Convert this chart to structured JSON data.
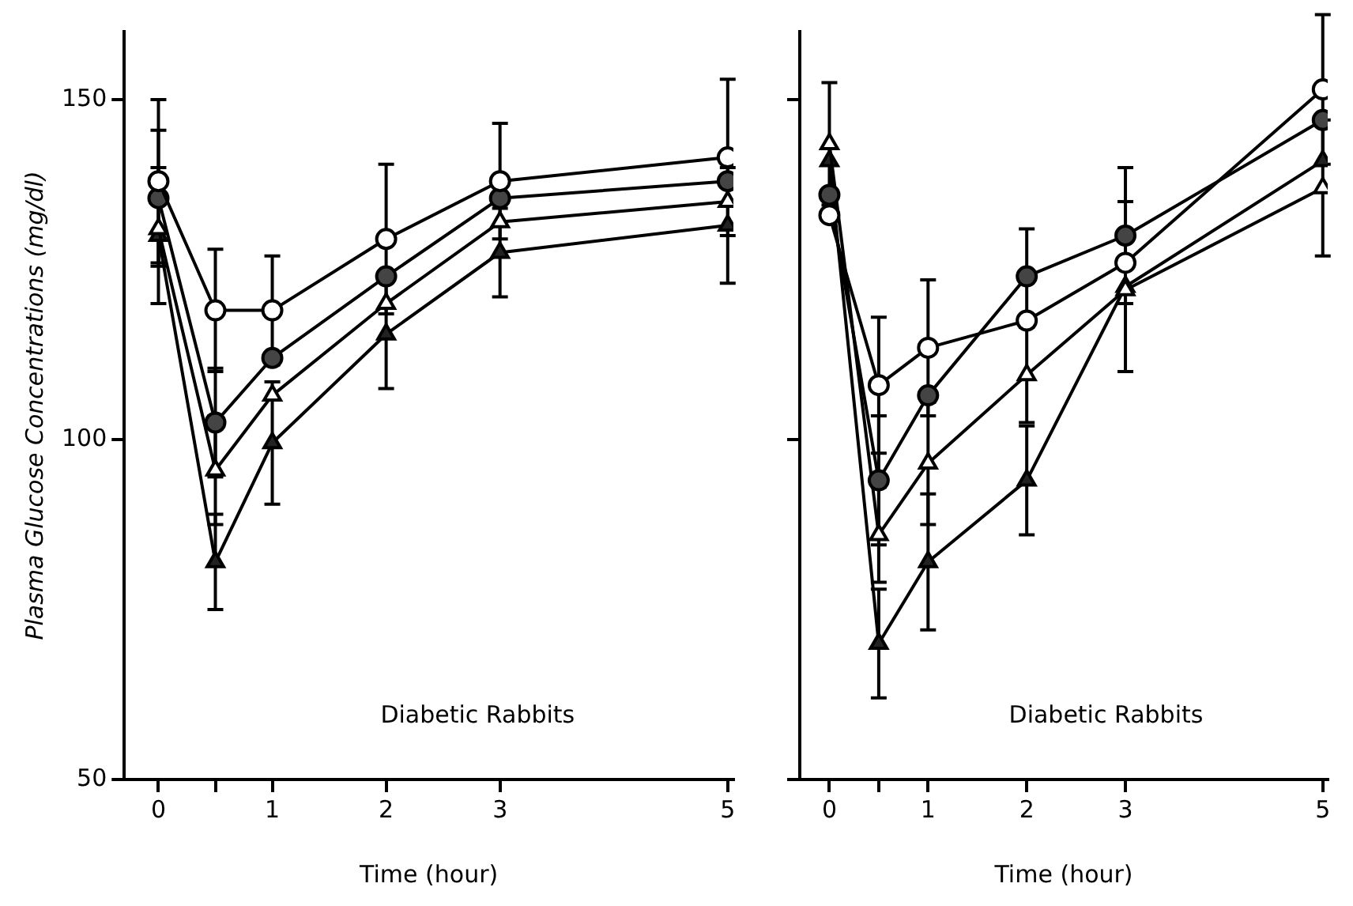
{
  "chart_data": [
    {
      "type": "line",
      "xlabel": "Time (hour)",
      "ylabel": "Plasma Glucose Concentrations (mg/dl)",
      "annotations": [
        "Diabetic Rabbits"
      ],
      "x": [
        0,
        0.5,
        1,
        2,
        3,
        5
      ],
      "xlim": [
        -0.3,
        5.05
      ],
      "ylim": [
        50,
        160
      ],
      "xticks": [
        0,
        {
          "value": 0.5,
          "label": null
        },
        1,
        2,
        3,
        5
      ],
      "yticks": [
        50,
        100,
        150
      ],
      "grid": false,
      "line_style": "solid",
      "series": [
        {
          "color": "#ffffff",
          "marker": "circle",
          "values": [
            138,
            119,
            119,
            129.5,
            138,
            141.5
          ],
          "errors": [
            12,
            9,
            8,
            11,
            8.5,
            11.5
          ]
        },
        {
          "color": "#444444",
          "marker": "circle",
          "values": [
            135.5,
            102.5,
            112,
            124,
            135.5,
            138
          ],
          "errors": [
            10,
            8,
            null,
            null,
            null,
            null
          ]
        },
        {
          "color": "#ffffff",
          "marker": "triangle",
          "values": [
            131,
            95.5,
            106.5,
            120,
            132,
            135
          ],
          "errors": [
            null,
            8,
            null,
            null,
            null,
            null
          ]
        },
        {
          "color": "#222222",
          "marker": "triangle",
          "values": [
            130,
            82,
            99.5,
            115.5,
            127.5,
            131.5
          ],
          "errors": [
            10,
            7,
            9,
            8,
            6.5,
            8.5
          ]
        }
      ]
    },
    {
      "type": "line",
      "xlabel": "Time (hour)",
      "annotations": [
        "Diabetic Rabbits"
      ],
      "x": [
        0,
        0.5,
        1,
        2,
        3,
        5
      ],
      "xlim": [
        -0.3,
        5.05
      ],
      "ylim": [
        50,
        160
      ],
      "xticks": [
        0,
        {
          "value": 0.5,
          "label": null
        },
        1,
        2,
        3,
        5
      ],
      "yticks": [
        {
          "value": 50,
          "label": null
        },
        {
          "value": 100,
          "label": null
        },
        {
          "value": 150,
          "label": null
        }
      ],
      "tick_labels": "x",
      "grid": false,
      "line_style": "solid",
      "series": [
        {
          "color": "#ffffff",
          "marker": "circle",
          "values": [
            133,
            108,
            113.5,
            117.5,
            126,
            151.5
          ],
          "errors": [
            null,
            10,
            10,
            null,
            null,
            11
          ]
        },
        {
          "color": "#444444",
          "marker": "circle",
          "values": [
            136,
            94,
            106.5,
            124,
            130,
            147
          ],
          "errors": [
            null,
            9.5,
            null,
            7,
            10,
            null
          ]
        },
        {
          "color": "#ffffff",
          "marker": "triangle",
          "values": [
            143.5,
            86,
            96.5,
            109.5,
            122,
            137
          ],
          "errors": [
            9,
            7,
            9,
            7,
            null,
            10
          ]
        },
        {
          "color": "#222222",
          "marker": "triangle",
          "values": [
            141,
            70,
            82,
            94,
            122.5,
            141
          ],
          "errors": [
            null,
            8,
            10,
            8,
            12.5,
            null
          ]
        }
      ]
    }
  ]
}
